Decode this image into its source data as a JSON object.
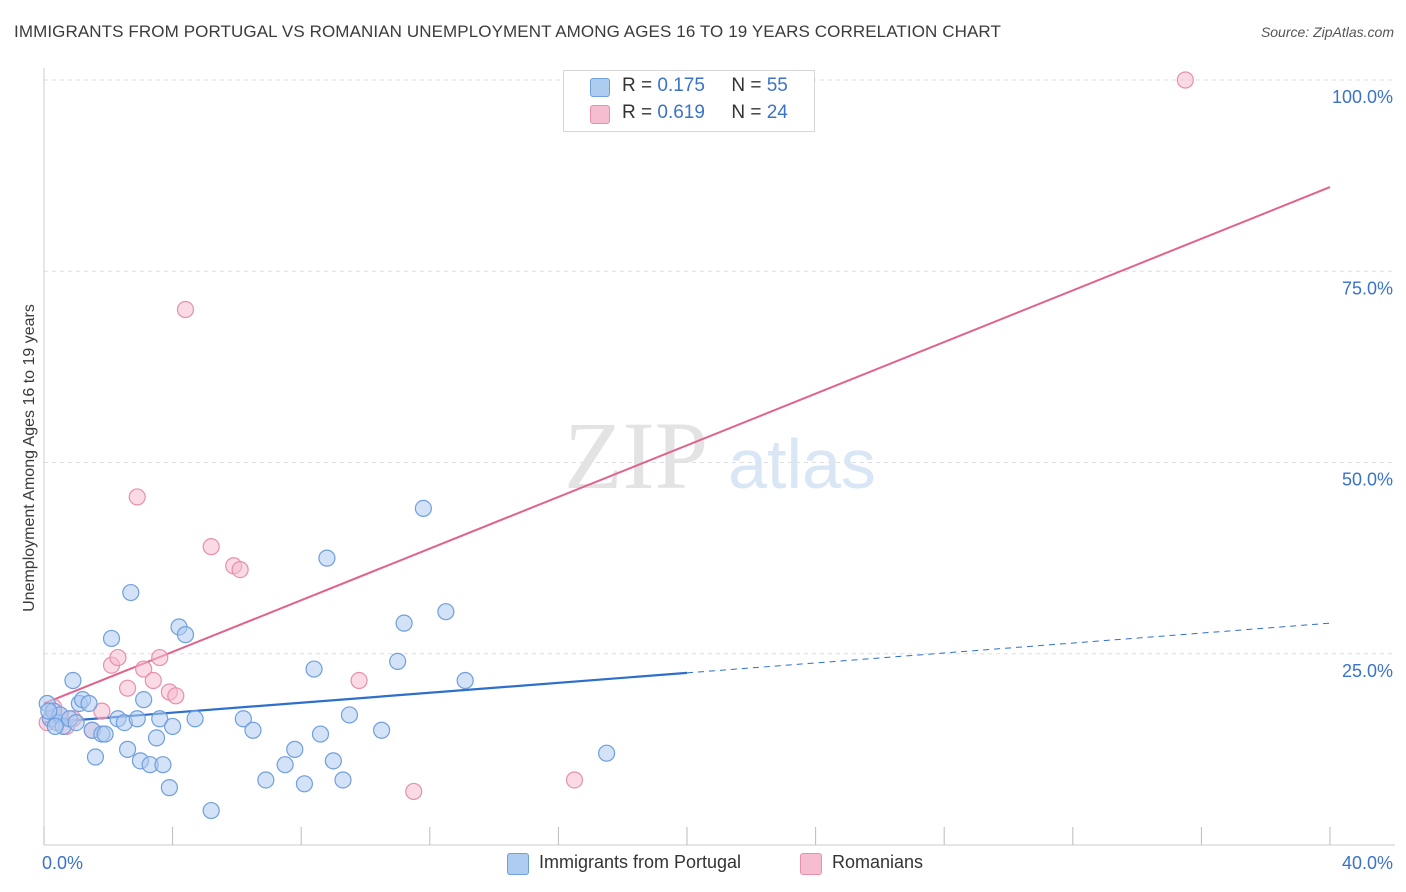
{
  "title": "IMMIGRANTS FROM PORTUGAL VS ROMANIAN UNEMPLOYMENT AMONG AGES 16 TO 19 YEARS CORRELATION CHART",
  "source": "Source: ZipAtlas.com",
  "watermark": {
    "zip": "ZIP",
    "atlas": "atlas"
  },
  "colors": {
    "blue_fill": "#aecbf0",
    "blue_stroke": "#6f9fdc",
    "blue_line": "#2e6fcc",
    "pink_fill": "#f6bcd0",
    "pink_stroke": "#e88fad",
    "pink_line": "#e0628d",
    "axis_text": "#3a73c8",
    "grid": "#dddddd"
  },
  "legend": {
    "rows": [
      {
        "r_label": "R = ",
        "r_value": "0.175",
        "n_label": "N = ",
        "n_value": "55"
      },
      {
        "r_label": "R = ",
        "r_value": "0.619",
        "n_label": "N = ",
        "n_value": "24"
      }
    ]
  },
  "bottom_legend": {
    "series1": "Immigrants from Portugal",
    "series2": "Romanians"
  },
  "chart_data": {
    "type": "scatter",
    "title": "IMMIGRANTS FROM PORTUGAL VS ROMANIAN UNEMPLOYMENT AMONG AGES 16 TO 19 YEARS CORRELATION CHART",
    "xlabel": "",
    "ylabel": "Unemployment Among Ages 16 to 19 years",
    "xlim": [
      0,
      40
    ],
    "ylim": [
      0,
      100
    ],
    "x_tick_labels": [
      "0.0%",
      "40.0%"
    ],
    "y_tick_labels": [
      "100.0%",
      "75.0%",
      "50.0%",
      "25.0%"
    ],
    "y_ticks": [
      100,
      75,
      50,
      25
    ],
    "series": [
      {
        "name": "Immigrants from Portugal",
        "r": 0.175,
        "n": 55,
        "trend": {
          "x0": 0,
          "y0": 16.0,
          "x1": 20,
          "y1": 22.5,
          "dash_x1": 40,
          "dash_y1": 29.0
        },
        "points": [
          [
            0.1,
            18.5
          ],
          [
            0.2,
            16.5
          ],
          [
            0.3,
            17.5
          ],
          [
            0.4,
            16.0
          ],
          [
            0.5,
            17.0
          ],
          [
            0.6,
            15.5
          ],
          [
            0.8,
            16.5
          ],
          [
            0.9,
            21.5
          ],
          [
            1.1,
            18.5
          ],
          [
            1.2,
            19.0
          ],
          [
            1.4,
            18.5
          ],
          [
            1.5,
            15.0
          ],
          [
            1.6,
            11.5
          ],
          [
            1.8,
            14.5
          ],
          [
            1.9,
            14.5
          ],
          [
            2.1,
            27.0
          ],
          [
            2.3,
            16.5
          ],
          [
            2.5,
            16.0
          ],
          [
            2.6,
            12.5
          ],
          [
            2.7,
            33.0
          ],
          [
            2.9,
            16.5
          ],
          [
            3.0,
            11.0
          ],
          [
            3.1,
            19.0
          ],
          [
            3.3,
            10.5
          ],
          [
            3.5,
            14.0
          ],
          [
            3.6,
            16.5
          ],
          [
            3.7,
            10.5
          ],
          [
            3.9,
            7.5
          ],
          [
            4.0,
            15.5
          ],
          [
            4.2,
            28.5
          ],
          [
            4.4,
            27.5
          ],
          [
            4.7,
            16.5
          ],
          [
            5.2,
            4.5
          ],
          [
            6.2,
            16.5
          ],
          [
            6.5,
            15.0
          ],
          [
            6.9,
            8.5
          ],
          [
            7.5,
            10.5
          ],
          [
            7.8,
            12.5
          ],
          [
            8.1,
            8.0
          ],
          [
            8.4,
            23.0
          ],
          [
            8.6,
            14.5
          ],
          [
            8.8,
            37.5
          ],
          [
            9.0,
            11.0
          ],
          [
            9.3,
            8.5
          ],
          [
            9.5,
            17.0
          ],
          [
            10.5,
            15.0
          ],
          [
            11.0,
            24.0
          ],
          [
            11.2,
            29.0
          ],
          [
            11.8,
            44.0
          ],
          [
            12.5,
            30.5
          ],
          [
            13.1,
            21.5
          ],
          [
            17.5,
            12.0
          ],
          [
            0.15,
            17.5
          ],
          [
            0.35,
            15.5
          ],
          [
            1.0,
            16.0
          ]
        ]
      },
      {
        "name": "Romanians",
        "r": 0.619,
        "n": 24,
        "trend": {
          "x0": 0,
          "y0": 18.5,
          "x1": 40,
          "y1": 86.0
        },
        "points": [
          [
            0.1,
            16.0
          ],
          [
            0.3,
            18.0
          ],
          [
            0.5,
            17.0
          ],
          [
            0.7,
            15.5
          ],
          [
            0.9,
            16.5
          ],
          [
            1.5,
            15.0
          ],
          [
            1.8,
            17.5
          ],
          [
            2.1,
            23.5
          ],
          [
            2.3,
            24.5
          ],
          [
            2.6,
            20.5
          ],
          [
            2.9,
            45.5
          ],
          [
            3.1,
            23.0
          ],
          [
            3.4,
            21.5
          ],
          [
            3.6,
            24.5
          ],
          [
            3.9,
            20.0
          ],
          [
            4.1,
            19.5
          ],
          [
            4.4,
            70.0
          ],
          [
            5.2,
            39.0
          ],
          [
            5.9,
            36.5
          ],
          [
            6.1,
            36.0
          ],
          [
            9.8,
            21.5
          ],
          [
            11.5,
            7.0
          ],
          [
            16.5,
            8.5
          ],
          [
            35.5,
            100.0
          ]
        ]
      }
    ]
  }
}
